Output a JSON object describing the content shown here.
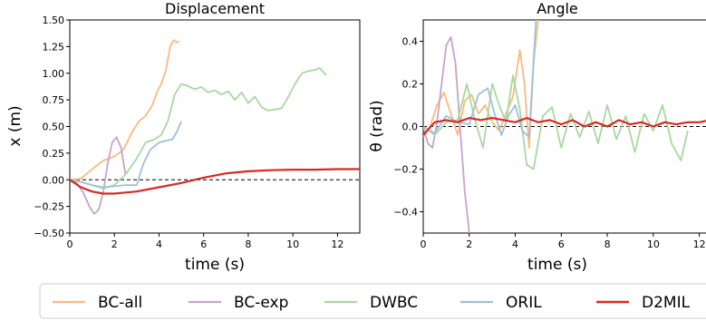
{
  "chart_data": [
    {
      "type": "line",
      "title": "Displacement",
      "xlabel": "time (s)",
      "ylabel": "x (m)",
      "xlim": [
        0,
        13
      ],
      "ylim": [
        -0.5,
        1.5
      ],
      "xticks": [
        "0",
        "2",
        "4",
        "6",
        "8",
        "10",
        "12"
      ],
      "yticks": [
        "−0.50",
        "−0.25",
        "0.00",
        "0.25",
        "0.50",
        "0.75",
        "1.00",
        "1.25",
        "1.50"
      ],
      "reference_line": 0,
      "series": [
        {
          "name": "BC-all",
          "color": "#fdb97d",
          "x": [
            0,
            0.5,
            1.0,
            1.5,
            2.0,
            2.4,
            2.8,
            3.1,
            3.4,
            3.7,
            3.9,
            4.1,
            4.3,
            4.5,
            4.65,
            4.8,
            4.9
          ],
          "y": [
            0.0,
            0.01,
            0.1,
            0.18,
            0.22,
            0.28,
            0.45,
            0.55,
            0.6,
            0.7,
            0.82,
            0.9,
            1.02,
            1.25,
            1.31,
            1.29,
            1.3
          ]
        },
        {
          "name": "BC-exp",
          "color": "#c5a3d0",
          "x": [
            0,
            0.3,
            0.6,
            0.9,
            1.1,
            1.3,
            1.5,
            1.7,
            1.9,
            2.1,
            2.3,
            2.5
          ],
          "y": [
            0.0,
            -0.03,
            -0.12,
            -0.26,
            -0.32,
            -0.28,
            -0.12,
            0.15,
            0.35,
            0.4,
            0.3,
            0.05
          ]
        },
        {
          "name": "DWBC",
          "color": "#a8d8a0",
          "x": [
            0,
            0.5,
            1.0,
            1.5,
            2.0,
            2.5,
            3.0,
            3.4,
            3.8,
            4.1,
            4.4,
            4.7,
            5.0,
            5.3,
            5.6,
            5.9,
            6.2,
            6.5,
            6.8,
            7.1,
            7.4,
            7.7,
            8.0,
            8.3,
            8.6,
            8.9,
            9.2,
            9.5,
            9.8,
            10.1,
            10.4,
            10.7,
            11.0,
            11.2,
            11.5
          ],
          "y": [
            0.0,
            -0.02,
            -0.05,
            -0.08,
            -0.05,
            0.05,
            0.2,
            0.35,
            0.38,
            0.42,
            0.55,
            0.8,
            0.9,
            0.88,
            0.85,
            0.87,
            0.82,
            0.84,
            0.8,
            0.83,
            0.75,
            0.82,
            0.72,
            0.78,
            0.68,
            0.65,
            0.66,
            0.67,
            0.78,
            0.9,
            1.0,
            1.02,
            1.03,
            1.05,
            0.98
          ]
        },
        {
          "name": "ORIL",
          "color": "#9cc1dc",
          "x": [
            0,
            0.5,
            1.0,
            1.5,
            2.0,
            2.5,
            3.0,
            3.3,
            3.6,
            4.0,
            4.4,
            4.6,
            4.8,
            5.0
          ],
          "y": [
            0.0,
            -0.02,
            -0.05,
            -0.07,
            -0.06,
            -0.05,
            -0.05,
            0.15,
            0.28,
            0.35,
            0.37,
            0.38,
            0.45,
            0.55
          ]
        },
        {
          "name": "D2MIL",
          "color": "#d62a20",
          "x": [
            0,
            0.5,
            1.0,
            1.5,
            2.0,
            3.0,
            4.0,
            5.0,
            6.0,
            7.0,
            8.0,
            9.0,
            10.0,
            11.0,
            12.0,
            13.0
          ],
          "y": [
            0.0,
            -0.07,
            -0.11,
            -0.13,
            -0.13,
            -0.11,
            -0.07,
            -0.03,
            0.02,
            0.06,
            0.08,
            0.09,
            0.095,
            0.095,
            0.1,
            0.1
          ]
        }
      ]
    },
    {
      "type": "line",
      "title": "Angle",
      "xlabel": "time (s)",
      "ylabel": "θ (rad)",
      "xlim": [
        0,
        13
      ],
      "ylim": [
        -0.5,
        0.5
      ],
      "xticks": [
        "0",
        "2",
        "4",
        "6",
        "8",
        "10",
        "12"
      ],
      "yticks": [
        "−0.4",
        "−0.2",
        "0.0",
        "0.2",
        "0.4"
      ],
      "reference_line": 0,
      "series": [
        {
          "name": "BC-all",
          "color": "#fdb97d",
          "x": [
            0,
            0.3,
            0.6,
            0.9,
            1.2,
            1.5,
            1.8,
            2.1,
            2.4,
            2.7,
            3.0,
            3.3,
            3.6,
            3.9,
            4.2,
            4.4,
            4.6,
            4.8,
            5.0
          ],
          "y": [
            -0.05,
            0.0,
            0.1,
            0.16,
            0.06,
            -0.04,
            0.12,
            0.15,
            0.06,
            0.1,
            0.02,
            -0.02,
            0.06,
            0.14,
            0.36,
            0.2,
            -0.1,
            0.3,
            0.5
          ]
        },
        {
          "name": "BC-exp",
          "color": "#c5a3d0",
          "x": [
            0,
            0.2,
            0.4,
            0.6,
            0.8,
            1.0,
            1.2,
            1.4,
            1.6,
            1.8,
            2.0
          ],
          "y": [
            0.0,
            -0.08,
            -0.1,
            0.02,
            0.2,
            0.38,
            0.42,
            0.3,
            0.0,
            -0.3,
            -0.5
          ]
        },
        {
          "name": "DWBC",
          "color": "#a8d8a0",
          "x": [
            0,
            0.5,
            1.0,
            1.5,
            1.9,
            2.2,
            2.6,
            3.0,
            3.3,
            3.6,
            3.9,
            4.2,
            4.5,
            4.8,
            5.2,
            5.6,
            6.0,
            6.4,
            6.8,
            7.2,
            7.6,
            8.0,
            8.4,
            8.8,
            9.2,
            9.6,
            10.0,
            10.4,
            10.8,
            11.2,
            11.5
          ],
          "y": [
            0.0,
            -0.04,
            0.02,
            0.03,
            0.2,
            0.05,
            -0.1,
            0.2,
            0.1,
            0.02,
            0.24,
            0.08,
            -0.18,
            -0.2,
            0.05,
            0.09,
            -0.1,
            0.06,
            -0.05,
            0.07,
            -0.08,
            0.1,
            -0.06,
            0.05,
            -0.12,
            0.06,
            -0.02,
            0.1,
            -0.08,
            -0.16,
            -0.02
          ]
        },
        {
          "name": "ORIL",
          "color": "#9cc1dc",
          "x": [
            0,
            0.5,
            1.0,
            1.5,
            2.0,
            2.4,
            2.8,
            3.1,
            3.4,
            3.7,
            4.0,
            4.3,
            4.6,
            4.9
          ],
          "y": [
            0.0,
            -0.03,
            0.05,
            0.02,
            0.01,
            0.15,
            0.18,
            0.06,
            -0.04,
            0.05,
            0.1,
            -0.02,
            -0.05,
            0.5
          ]
        },
        {
          "name": "D2MIL",
          "color": "#d62a20",
          "x": [
            0,
            0.5,
            1.0,
            1.5,
            2.0,
            2.5,
            3.0,
            3.5,
            4.0,
            4.5,
            5.0,
            5.5,
            6.0,
            6.5,
            7.0,
            7.5,
            8.0,
            8.5,
            9.0,
            9.5,
            10.0,
            10.5,
            11.0,
            11.5,
            12.0,
            12.5,
            13.0
          ],
          "y": [
            -0.04,
            0.02,
            0.03,
            0.02,
            0.04,
            0.03,
            0.04,
            0.03,
            0.02,
            0.04,
            0.02,
            0.03,
            0.01,
            0.03,
            0.0,
            0.02,
            0.0,
            0.03,
            0.01,
            0.02,
            0.0,
            0.02,
            0.01,
            0.02,
            0.02,
            0.03,
            0.02
          ]
        }
      ]
    }
  ],
  "legend": {
    "placement": "bottom",
    "items": [
      {
        "label": "BC-all",
        "color": "#fdb97d"
      },
      {
        "label": "BC-exp",
        "color": "#c5a3d0"
      },
      {
        "label": "DWBC",
        "color": "#a8d8a0"
      },
      {
        "label": "ORIL",
        "color": "#9cc1dc"
      },
      {
        "label": "D2MIL",
        "color": "#d62a20"
      }
    ]
  }
}
